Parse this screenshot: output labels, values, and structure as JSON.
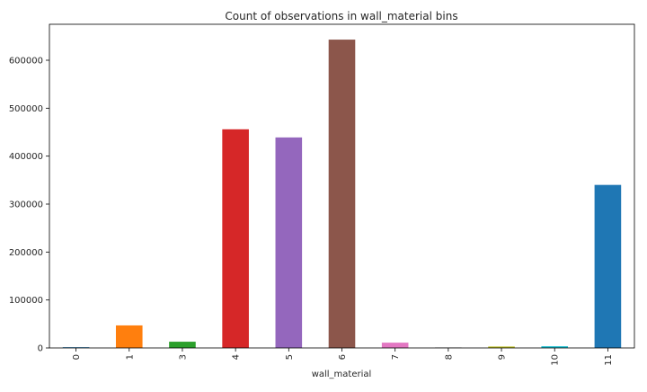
{
  "chart_data": {
    "type": "bar",
    "title": "Count of observations in wall_material bins",
    "xlabel": "wall_material",
    "ylabel": "",
    "categories": [
      "0",
      "1",
      "3",
      "4",
      "5",
      "6",
      "7",
      "8",
      "9",
      "10",
      "11"
    ],
    "values": [
      1500,
      47000,
      13000,
      456000,
      439000,
      643000,
      11000,
      1000,
      3000,
      3500,
      340000
    ],
    "colors": [
      "#1f77b4",
      "#ff7f0e",
      "#2ca02c",
      "#d62728",
      "#9467bd",
      "#8c564b",
      "#e377c2",
      "#7f7f7f",
      "#bcbd22",
      "#17becf",
      "#1f77b4"
    ],
    "ylim": [
      0,
      675000
    ],
    "yticks": [
      0,
      100000,
      200000,
      300000,
      400000,
      500000,
      600000
    ],
    "ytick_labels": [
      "0",
      "100000",
      "200000",
      "300000",
      "400000",
      "500000",
      "600000"
    ],
    "grid": false,
    "legend": "none"
  }
}
